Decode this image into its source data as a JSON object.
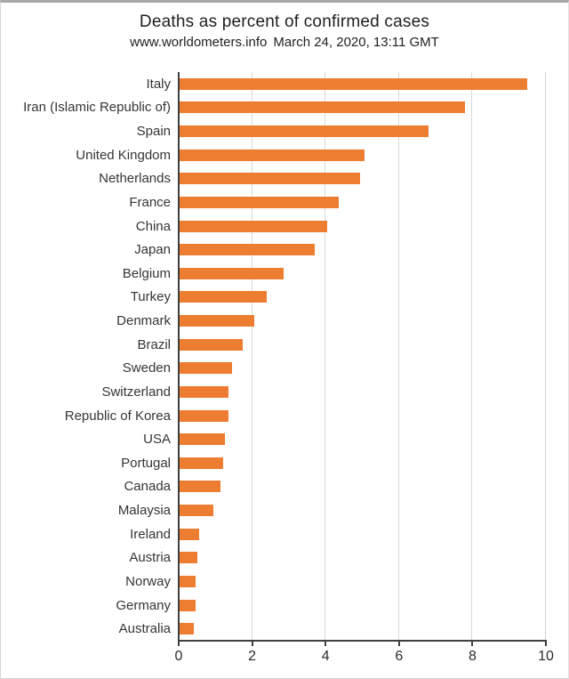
{
  "header": {
    "title": "Deaths as percent of confirmed cases",
    "source": "www.worldometers.info",
    "timestamp": "March 24, 2020, 13:11 GMT"
  },
  "chart_data": {
    "type": "bar",
    "orientation": "horizontal",
    "title": "Deaths as percent of confirmed cases",
    "subtitle": "www.worldometers.info March 24, 2020, 13:11 GMT",
    "categories": [
      "Italy",
      "Iran (Islamic Republic of)",
      "Spain",
      "United Kingdom",
      "Netherlands",
      "France",
      "China",
      "Japan",
      "Belgium",
      "Turkey",
      "Denmark",
      "Brazil",
      "Sweden",
      "Switzerland",
      "Republic of Korea",
      "USA",
      "Portugal",
      "Canada",
      "Malaysia",
      "Ireland",
      "Austria",
      "Norway",
      "Germany",
      "Australia"
    ],
    "values": [
      9.5,
      7.8,
      6.8,
      5.05,
      4.95,
      4.35,
      4.05,
      3.7,
      2.85,
      2.4,
      2.05,
      1.75,
      1.45,
      1.35,
      1.35,
      1.25,
      1.2,
      1.15,
      0.95,
      0.55,
      0.5,
      0.45,
      0.45,
      0.4
    ],
    "xlabel": "",
    "ylabel": "",
    "xlim": [
      0,
      10
    ],
    "x_ticks": [
      0,
      2,
      4,
      6,
      8,
      10
    ],
    "grid": "vertical-gridlines",
    "legend": "none",
    "bar_color": "#ED7D31",
    "axis_color": "#3f3f3f",
    "gridline_color": "#d9d9d9"
  }
}
